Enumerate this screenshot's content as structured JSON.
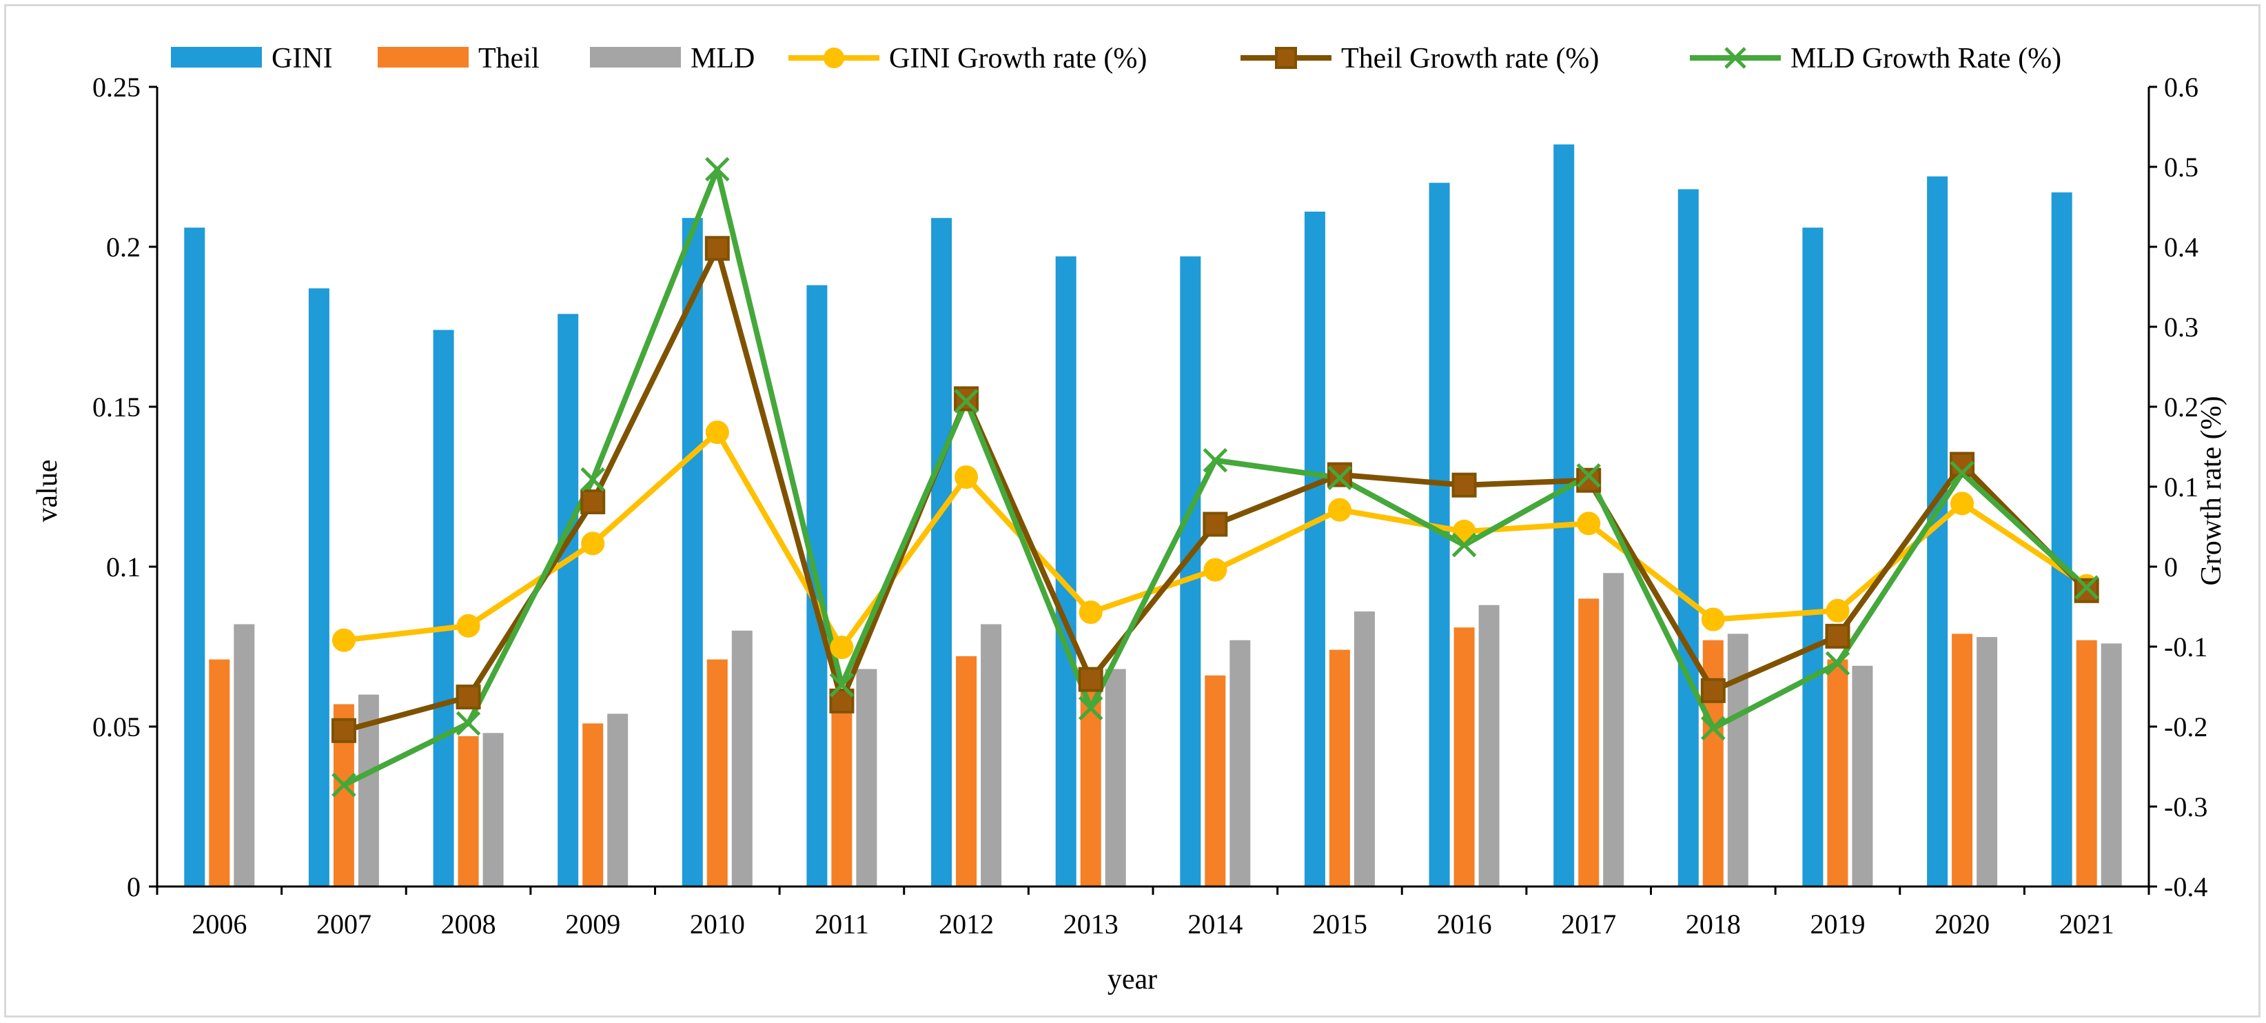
{
  "chart_data": {
    "type": "bar",
    "title": "",
    "xlabel": "year",
    "ylabel": "value",
    "y2label": "Growth rate (%)",
    "ylim": [
      0,
      0.25
    ],
    "y2lim": [
      -0.4,
      0.6
    ],
    "y_ticks": [
      "0",
      "0.05",
      "0.1",
      "0.15",
      "0.2",
      "0.25"
    ],
    "y2_ticks": [
      "-0.4",
      "-0.3",
      "-0.2",
      "-0.1",
      "0",
      "0.1",
      "0.2",
      "0.3",
      "0.4",
      "0.5",
      "0.6"
    ],
    "legend_position": "top",
    "categories": [
      "2006",
      "2007",
      "2008",
      "2009",
      "2010",
      "2011",
      "2012",
      "2013",
      "2014",
      "2015",
      "2016",
      "2017",
      "2018",
      "2019",
      "2020",
      "2021"
    ],
    "bar_series": [
      {
        "name": "GINI",
        "color": "#1f9bd7",
        "values": [
          0.206,
          0.187,
          0.174,
          0.179,
          0.209,
          0.188,
          0.209,
          0.197,
          0.197,
          0.211,
          0.22,
          0.232,
          0.218,
          0.206,
          0.222,
          0.217
        ]
      },
      {
        "name": "Theil",
        "color": "#f58025",
        "values": [
          0.071,
          0.057,
          0.047,
          0.051,
          0.071,
          0.058,
          0.072,
          0.064,
          0.066,
          0.074,
          0.081,
          0.09,
          0.077,
          0.071,
          0.079,
          0.077
        ]
      },
      {
        "name": "MLD",
        "color": "#a5a5a5",
        "values": [
          0.082,
          0.06,
          0.048,
          0.054,
          0.08,
          0.068,
          0.082,
          0.068,
          0.077,
          0.086,
          0.088,
          0.098,
          0.079,
          0.069,
          0.078,
          0.076
        ]
      }
    ],
    "line_series": [
      {
        "name": "GINI Growth rate (%)",
        "color": "#ffc000",
        "marker": "circle",
        "values": [
          null,
          -0.092,
          -0.074,
          0.029,
          0.168,
          -0.101,
          0.112,
          -0.057,
          -0.004,
          0.071,
          0.044,
          0.054,
          -0.066,
          -0.055,
          0.079,
          -0.024
        ]
      },
      {
        "name": "Theil Growth rate (%)",
        "color": "#7f5200",
        "marker": "square",
        "values": [
          null,
          -0.205,
          -0.163,
          0.081,
          0.398,
          -0.168,
          0.21,
          -0.141,
          0.053,
          0.115,
          0.102,
          0.108,
          -0.155,
          -0.087,
          0.128,
          -0.03
        ]
      },
      {
        "name": "MLD Growth Rate (%)",
        "color": "#44a83a",
        "marker": "x",
        "values": [
          null,
          -0.273,
          -0.196,
          0.109,
          0.497,
          -0.148,
          0.207,
          -0.177,
          0.133,
          0.111,
          0.027,
          0.114,
          -0.202,
          -0.121,
          0.117,
          -0.026
        ]
      }
    ]
  }
}
